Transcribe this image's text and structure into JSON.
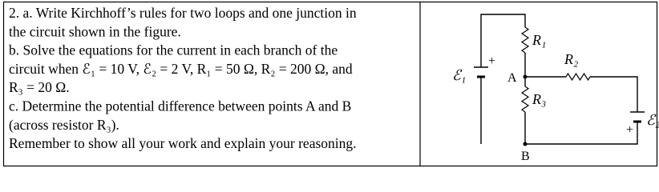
{
  "problem": {
    "lines": [
      "2. a. Write Kirchhoff’s rules for two loops and one junction in",
      "the circuit shown in the figure.",
      "b. Solve the equations for the current in each branch of the",
      "circuit when ℰ₁ = 10 V, ℰ₂ = 2 V, R₁ = 50 Ω, R₂ = 200 Ω, and",
      "R₃ = 20 Ω.",
      "c. Determine the potential difference between points A and B",
      "(across resistor R₃).",
      "Remember to show all your work and explain your reasoning."
    ]
  },
  "diagram": {
    "labels": {
      "r1": "R₁",
      "r2": "R₂",
      "r3": "R₃",
      "emf1": "ℰ₁",
      "emf2": "ℰ₂",
      "a": "A",
      "b": "B",
      "plus1": "+",
      "plus2": "+"
    }
  }
}
